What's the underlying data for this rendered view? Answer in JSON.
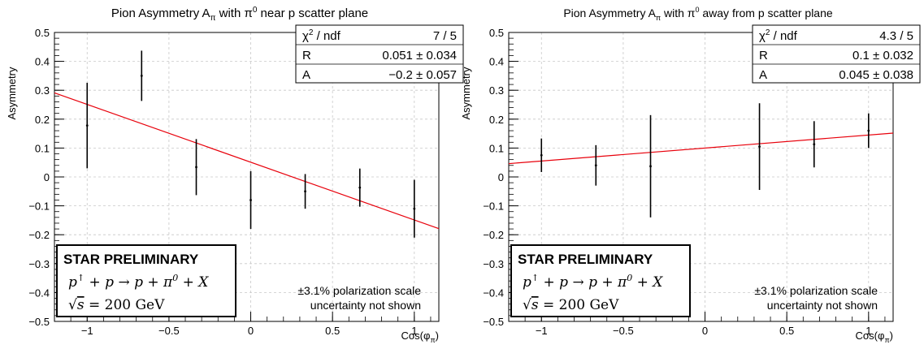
{
  "chart_data": [
    {
      "type": "scatter",
      "title_text": "Pion Asymmetry A",
      "title_sub": "π",
      "title_rest_a": " with π",
      "title_sup": "0",
      "title_rest_b": " near p scatter plane",
      "xlabel": "Cos(φ",
      "xlabel_sub": "π",
      "xlabel_end": ")",
      "ylabel": "Asymmetry",
      "xlim": [
        -1.2,
        1.15
      ],
      "ylim": [
        -0.5,
        0.5
      ],
      "grid": true,
      "xticks": [
        -1,
        -0.5,
        0,
        0.5,
        1
      ],
      "xtick_labels": [
        "−1",
        "−0.5",
        "0",
        "0.5",
        "1"
      ],
      "yticks": [
        0.5,
        0.4,
        0.3,
        0.2,
        0.1,
        0,
        -0.1,
        -0.2,
        -0.3,
        -0.4,
        -0.5
      ],
      "ytick_labels": [
        "0.5",
        "0.4",
        "0.3",
        "0.2",
        "0.1",
        "0",
        "−0.1",
        "−0.2",
        "−0.3",
        "−0.4",
        "−0.5"
      ],
      "points": [
        {
          "x": -1.0,
          "y": 0.178,
          "err": 0.148
        },
        {
          "x": -0.667,
          "y": 0.35,
          "err": 0.087
        },
        {
          "x": -0.333,
          "y": 0.034,
          "err": 0.097
        },
        {
          "x": 0.0,
          "y": -0.08,
          "err": 0.1
        },
        {
          "x": 0.333,
          "y": -0.05,
          "err": 0.06
        },
        {
          "x": 0.667,
          "y": -0.037,
          "err": 0.066
        },
        {
          "x": 1.0,
          "y": -0.11,
          "err": 0.1
        }
      ],
      "fit": {
        "R": 0.051,
        "A": -0.2,
        "color": "#e8000b"
      },
      "stats": {
        "chi_label": "χ",
        "chi_sup": "2",
        "chi_rest": " / ndf",
        "chi_value": "7 / 5",
        "r_label": "R",
        "r_value": "0.051 ± 0.034",
        "a_label": "A",
        "a_value": "−0.2 ± 0.057"
      },
      "star_label": "STAR PRELIMINARY",
      "reaction": {
        "p1": "p",
        "up": "↑",
        "mid": " + p → p + π",
        "sup0": "0",
        "end": " + X"
      },
      "energy": {
        "root": "√",
        "s": "s",
        "eq": " = 200 GeV"
      },
      "note_line1": "±3.1% polarization scale",
      "note_line2": "uncertainty not shown"
    },
    {
      "type": "scatter",
      "title_text": "Pion Asymmetry A",
      "title_sub": "π",
      "title_rest_a": " with π",
      "title_sup": "0",
      "title_rest_b": " away from p scatter plane",
      "xlabel": "Cos(φ",
      "xlabel_sub": "π",
      "xlabel_end": ")",
      "ylabel": "Asymmetry",
      "xlim": [
        -1.2,
        1.15
      ],
      "ylim": [
        -0.5,
        0.5
      ],
      "grid": true,
      "xticks": [
        -1,
        -0.5,
        0,
        0.5,
        1
      ],
      "xtick_labels": [
        "−1",
        "−0.5",
        "0",
        "0.5",
        "1"
      ],
      "yticks": [
        0.5,
        0.4,
        0.3,
        0.2,
        0.1,
        0,
        -0.1,
        -0.2,
        -0.3,
        -0.4,
        -0.5
      ],
      "ytick_labels": [
        "0.5",
        "0.4",
        "0.3",
        "0.2",
        "0.1",
        "0",
        "−0.1",
        "−0.2",
        "−0.3",
        "−0.4",
        "−0.5"
      ],
      "points": [
        {
          "x": -1.0,
          "y": 0.075,
          "err": 0.058
        },
        {
          "x": -0.667,
          "y": 0.04,
          "err": 0.07
        },
        {
          "x": -0.333,
          "y": 0.037,
          "err": 0.177
        },
        {
          "x": 0.333,
          "y": 0.105,
          "err": 0.15
        },
        {
          "x": 0.667,
          "y": 0.113,
          "err": 0.08
        },
        {
          "x": 1.0,
          "y": 0.16,
          "err": 0.06
        }
      ],
      "fit": {
        "R": 0.1,
        "A": 0.045,
        "color": "#e8000b"
      },
      "stats": {
        "chi_label": "χ",
        "chi_sup": "2",
        "chi_rest": " / ndf",
        "chi_value": "4.3 / 5",
        "r_label": "R",
        "r_value": "0.1 ± 0.032",
        "a_label": "A",
        "a_value": "0.045 ± 0.038"
      },
      "star_label": "STAR PRELIMINARY",
      "reaction": {
        "p1": "p",
        "up": "↑",
        "mid": " + p → p + π",
        "sup0": "0",
        "end": " + X"
      },
      "energy": {
        "root": "√",
        "s": "s",
        "eq": " = 200 GeV"
      },
      "note_line1": "±3.1% polarization scale",
      "note_line2": "uncertainty not shown"
    }
  ]
}
